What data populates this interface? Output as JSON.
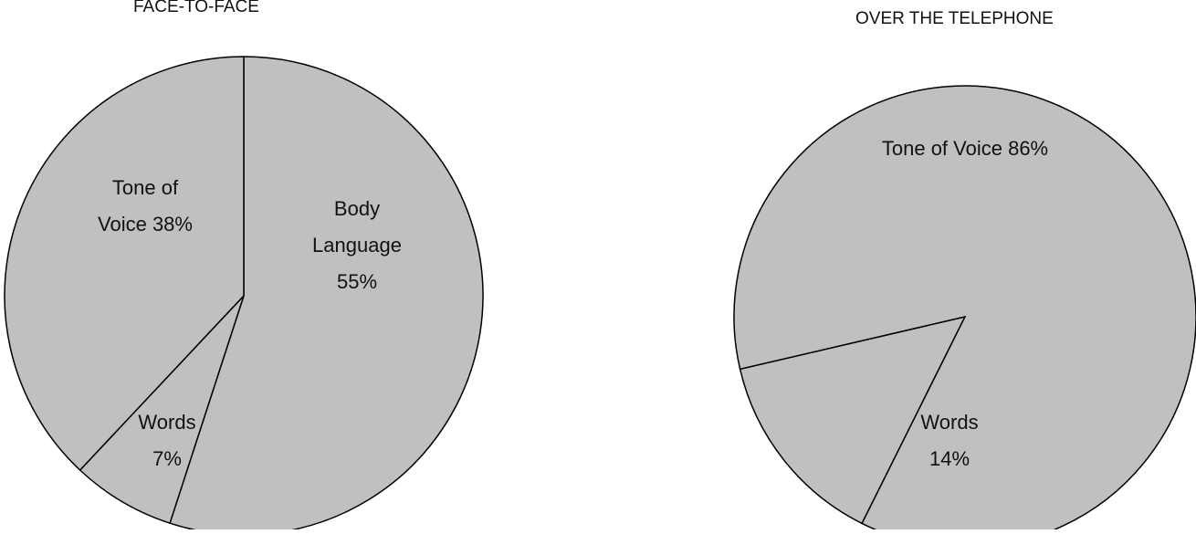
{
  "chart_data": [
    {
      "type": "pie",
      "title": "FACE-TO-FACE",
      "slices": [
        {
          "label_lines": [
            "Body",
            "Language",
            "55%"
          ],
          "value": 55
        },
        {
          "label_lines": [
            "Words",
            "7%"
          ],
          "value": 7
        },
        {
          "label_lines": [
            "Tone of",
            "Voice 38%"
          ],
          "value": 38
        }
      ],
      "slice_color": "#c0c0c0",
      "stroke_color": "#000000"
    },
    {
      "type": "pie",
      "title": "OVER THE TELEPHONE",
      "slices": [
        {
          "label_lines": [
            "Words",
            "14%"
          ],
          "value": 14
        },
        {
          "label_lines": [
            "Tone of Voice 86%"
          ],
          "value": 86
        }
      ],
      "slice_color": "#c0c0c0",
      "stroke_color": "#000000"
    }
  ]
}
